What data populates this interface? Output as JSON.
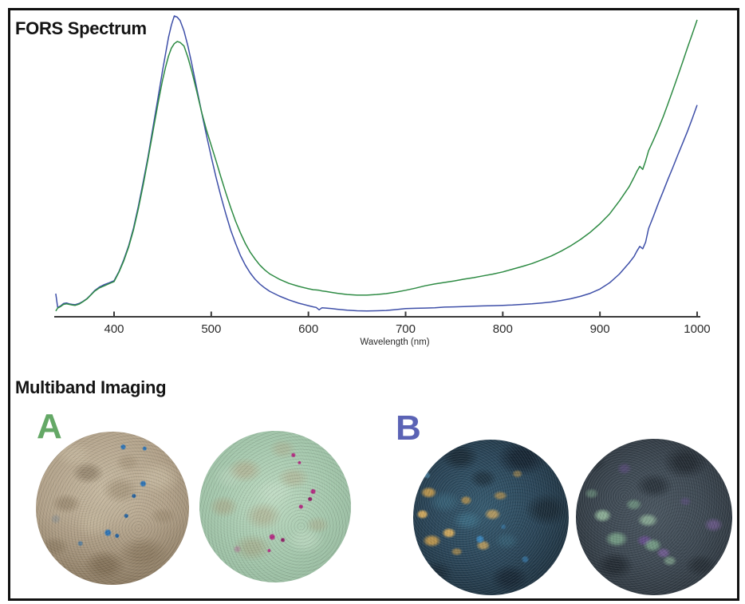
{
  "frame": {
    "border_color": "#111111",
    "background": "#ffffff"
  },
  "fors": {
    "title": "FORS Spectrum"
  },
  "chart_data": {
    "type": "line",
    "title": "FORS Spectrum",
    "xlabel": "Wavelength (nm)",
    "ylabel": "",
    "xlim": [
      340,
      1000
    ],
    "ylim": [
      0,
      100
    ],
    "x_ticks": [
      400,
      500,
      600,
      700,
      800,
      900,
      1000
    ],
    "grid": false,
    "legend": "none",
    "axis_color": "#3a3a3a",
    "tick_label_color": "#2b2b2b",
    "x": [
      340,
      342,
      345,
      348,
      351,
      354,
      357,
      360,
      364,
      368,
      372,
      376,
      380,
      385,
      390,
      395,
      400,
      405,
      410,
      415,
      420,
      425,
      430,
      435,
      440,
      445,
      450,
      453,
      456,
      459,
      462,
      465,
      468,
      472,
      476,
      480,
      485,
      490,
      495,
      500,
      505,
      510,
      515,
      520,
      525,
      530,
      535,
      540,
      545,
      550,
      555,
      560,
      570,
      580,
      590,
      600,
      605,
      608,
      611,
      614,
      618,
      624,
      630,
      640,
      650,
      660,
      670,
      680,
      690,
      700,
      710,
      720,
      730,
      740,
      750,
      760,
      770,
      780,
      790,
      800,
      810,
      820,
      830,
      840,
      850,
      860,
      870,
      880,
      890,
      900,
      910,
      920,
      930,
      935,
      938,
      941,
      944,
      947,
      950,
      955,
      960,
      965,
      970,
      975,
      980,
      985,
      990,
      995,
      1000
    ],
    "series": [
      {
        "name": "B (blue)",
        "color": "#3e4fa8",
        "values": [
          7.7,
          3.1,
          3.6,
          4.4,
          4.6,
          4.3,
          4.1,
          4.0,
          4.4,
          5.1,
          6.0,
          7.3,
          8.7,
          9.9,
          10.7,
          11.3,
          12.0,
          15.0,
          19.0,
          23.6,
          29.5,
          36.8,
          44.8,
          53.2,
          62.8,
          72.3,
          82.0,
          87.5,
          92.8,
          97.0,
          100.0,
          99.6,
          98.5,
          95.0,
          90.0,
          84.0,
          76.0,
          68.2,
          60.5,
          53.2,
          46.3,
          40.0,
          34.2,
          28.8,
          24.4,
          20.4,
          17.2,
          14.6,
          12.5,
          10.9,
          9.6,
          8.5,
          6.9,
          5.6,
          4.5,
          3.7,
          3.3,
          3.1,
          2.3,
          3.0,
          2.9,
          2.7,
          2.5,
          2.2,
          2.0,
          1.9,
          2.0,
          2.1,
          2.4,
          2.7,
          2.8,
          2.9,
          3.0,
          3.2,
          3.3,
          3.4,
          3.5,
          3.6,
          3.7,
          3.8,
          3.9,
          4.1,
          4.3,
          4.6,
          4.9,
          5.4,
          6.0,
          6.8,
          7.8,
          9.2,
          11.3,
          14.2,
          17.9,
          20.0,
          21.8,
          23.4,
          22.6,
          24.8,
          29.3,
          33.4,
          37.6,
          41.6,
          45.7,
          49.6,
          53.7,
          57.6,
          61.6,
          65.9,
          70.4
        ]
      },
      {
        "name": "A (green)",
        "color": "#2e8b44",
        "values": [
          1.9,
          2.9,
          3.4,
          4.1,
          4.3,
          4.1,
          3.9,
          3.8,
          4.2,
          5.0,
          5.9,
          7.2,
          8.5,
          9.6,
          10.3,
          11.0,
          11.7,
          14.8,
          18.6,
          23.2,
          28.9,
          36.0,
          43.8,
          52.5,
          61.5,
          70.5,
          78.8,
          83.0,
          86.6,
          89.3,
          90.8,
          91.5,
          91.2,
          90.0,
          86.2,
          81.6,
          75.0,
          68.2,
          62.2,
          57.0,
          51.8,
          46.4,
          41.2,
          36.3,
          31.8,
          27.9,
          24.4,
          21.5,
          19.2,
          17.2,
          15.6,
          14.3,
          12.5,
          11.1,
          10.1,
          9.3,
          9.0,
          8.9,
          8.8,
          8.6,
          8.4,
          8.1,
          7.8,
          7.4,
          7.2,
          7.2,
          7.4,
          7.7,
          8.2,
          8.8,
          9.5,
          10.3,
          10.9,
          11.4,
          11.9,
          12.5,
          13.0,
          13.6,
          14.2,
          14.9,
          15.8,
          16.7,
          17.7,
          18.9,
          20.2,
          21.8,
          23.6,
          25.7,
          28.1,
          30.9,
          34.2,
          38.5,
          43.2,
          46.3,
          48.3,
          50.0,
          49.0,
          51.8,
          55.2,
          58.7,
          62.4,
          66.4,
          70.8,
          75.3,
          79.9,
          84.6,
          89.4,
          94.0,
          98.7
        ]
      }
    ]
  },
  "multiband": {
    "title": "Multiband Imaging",
    "panels": [
      {
        "label": "A",
        "colors": {
          "label": "#64a866"
        },
        "images": [
          {
            "palette": {
              "base": "#b2a28a",
              "light": "#c6b9a1",
              "dark": "#8c7b62",
              "blue": "#2f74b4",
              "blue2": "#24619e",
              "grayblue": "#5a7d98"
            }
          },
          {
            "palette": {
              "base": "#a4c7ac",
              "light": "#bcd9c0",
              "dark": "#8fb296",
              "magenta": "#b12a80",
              "magenta2": "#8e2066",
              "tan": "#b3a383"
            }
          }
        ]
      },
      {
        "label": "B",
        "colors": {
          "label": "#5b63b5"
        },
        "images": [
          {
            "palette": {
              "base": "#2a4558",
              "teal": "#35596e",
              "dark": "#16242e",
              "ochre": "#b3914f",
              "gold": "#caa55e",
              "blue": "#3a83b8"
            }
          },
          {
            "palette": {
              "base": "#3d4852",
              "slate": "#49555f",
              "dark": "#242b32",
              "green": "#7ea98d",
              "green2": "#9cc2a4",
              "purple": "#6f4f9a",
              "violet": "#8a66b0"
            }
          }
        ]
      }
    ]
  }
}
